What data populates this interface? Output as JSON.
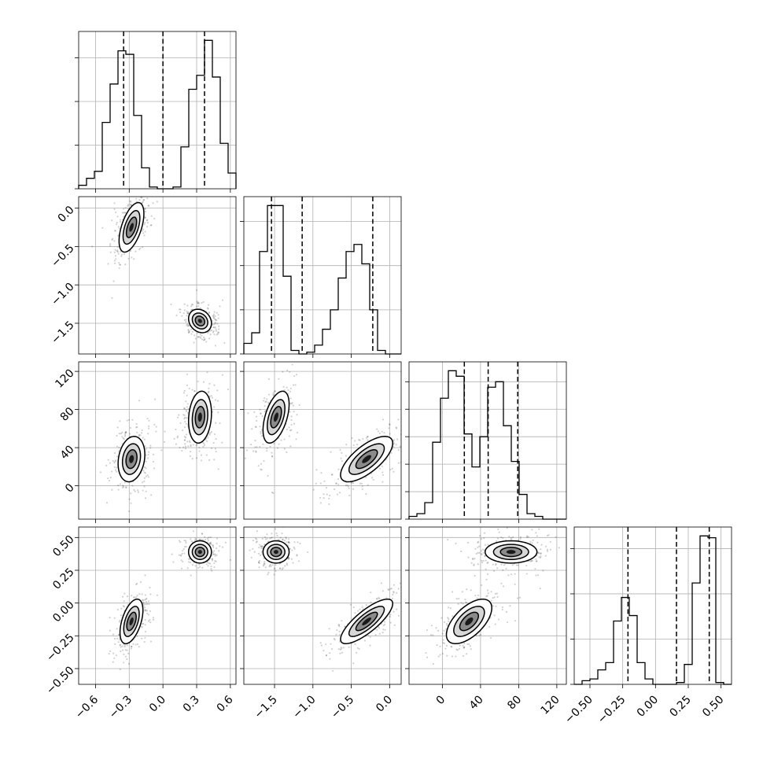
{
  "chart_data": {
    "type": "corner",
    "parameters": [
      {
        "range": [
          -0.75,
          0.65
        ],
        "ticks": [
          -0.6,
          -0.3,
          0.0,
          0.3,
          0.6
        ],
        "tick_labels": [
          "−0.6",
          "−0.3",
          "0.0",
          "0.3",
          "0.6"
        ],
        "quantiles": [
          -0.35,
          0.0,
          0.37
        ]
      },
      {
        "range": [
          -1.9,
          0.15
        ],
        "ticks": [
          -1.5,
          -1.0,
          -0.5,
          0.0
        ],
        "tick_labels": [
          "−1.5",
          "−1.0",
          "−0.5",
          "0.0"
        ],
        "quantiles": [
          -1.54,
          -1.14,
          -0.22
        ]
      },
      {
        "range": [
          -35,
          130
        ],
        "ticks": [
          0,
          40,
          80,
          120
        ],
        "tick_labels": [
          "0",
          "40",
          "80",
          "120"
        ],
        "quantiles": [
          23,
          48,
          79
        ]
      },
      {
        "range": [
          -0.62,
          0.58
        ],
        "ticks": [
          -0.5,
          -0.25,
          0.0,
          0.25,
          0.5
        ],
        "tick_labels": [
          "−0.50",
          "−0.25",
          "0.00",
          "0.25",
          "0.50"
        ],
        "quantiles": [
          -0.21,
          0.16,
          0.41
        ]
      }
    ],
    "histograms": [
      {
        "bins": 20,
        "counts": [
          2,
          6,
          10,
          38,
          60,
          79,
          77,
          42,
          12,
          1,
          0,
          0,
          1,
          24,
          57,
          65,
          85,
          64,
          26,
          9
        ]
      },
      {
        "bins": 20,
        "counts": [
          6,
          12,
          58,
          84,
          84,
          44,
          2,
          0,
          1,
          5,
          14,
          25,
          43,
          58,
          62,
          51,
          25,
          2,
          0,
          0
        ]
      },
      {
        "bins": 20,
        "counts": [
          1,
          2,
          6,
          28,
          44,
          54,
          52,
          31,
          19,
          30,
          48,
          50,
          34,
          21,
          9,
          2,
          1,
          0,
          0,
          0
        ]
      },
      {
        "bins": 20,
        "counts": [
          0,
          2,
          3,
          8,
          12,
          35,
          48,
          38,
          12,
          3,
          0,
          0,
          0,
          1,
          11,
          56,
          82,
          81,
          1,
          0
        ]
      }
    ],
    "modes": [
      {
        "params": [
          0,
          1
        ],
        "blobs": [
          {
            "cx": -0.28,
            "cy": -0.25,
            "sx": 0.065,
            "sy": 0.19,
            "rho": 0.55
          },
          {
            "cx": 0.33,
            "cy": -1.47,
            "sx": 0.06,
            "sy": 0.09,
            "rho": -0.2
          }
        ]
      },
      {
        "params": [
          0,
          2
        ],
        "blobs": [
          {
            "cx": -0.28,
            "cy": 28,
            "sx": 0.07,
            "sy": 14,
            "rho": 0.2
          },
          {
            "cx": 0.33,
            "cy": 72,
            "sx": 0.06,
            "sy": 16,
            "rho": 0.15
          }
        ]
      },
      {
        "params": [
          0,
          3
        ],
        "blobs": [
          {
            "cx": -0.28,
            "cy": -0.14,
            "sx": 0.06,
            "sy": 0.1,
            "rho": 0.5
          },
          {
            "cx": 0.33,
            "cy": 0.39,
            "sx": 0.06,
            "sy": 0.05,
            "rho": 0.0
          }
        ]
      },
      {
        "params": [
          1,
          2
        ],
        "blobs": [
          {
            "cx": -1.48,
            "cy": 72,
            "sx": 0.1,
            "sy": 16,
            "rho": 0.5
          },
          {
            "cx": -0.3,
            "cy": 28,
            "sx": 0.2,
            "sy": 14,
            "rho": 0.7
          }
        ]
      },
      {
        "params": [
          1,
          3
        ],
        "blobs": [
          {
            "cx": -1.48,
            "cy": 0.39,
            "sx": 0.1,
            "sy": 0.05,
            "rho": 0.0
          },
          {
            "cx": -0.3,
            "cy": -0.14,
            "sx": 0.2,
            "sy": 0.1,
            "rho": 0.8
          }
        ]
      },
      {
        "params": [
          2,
          3
        ],
        "blobs": [
          {
            "cx": 72,
            "cy": 0.39,
            "sx": 16,
            "sy": 0.05,
            "rho": 0.0
          },
          {
            "cx": 28,
            "cy": -0.14,
            "sx": 14,
            "sy": 0.1,
            "rho": 0.6
          }
        ]
      }
    ],
    "grid": true,
    "contour_levels": [
      0.25,
      0.5,
      0.75
    ]
  }
}
